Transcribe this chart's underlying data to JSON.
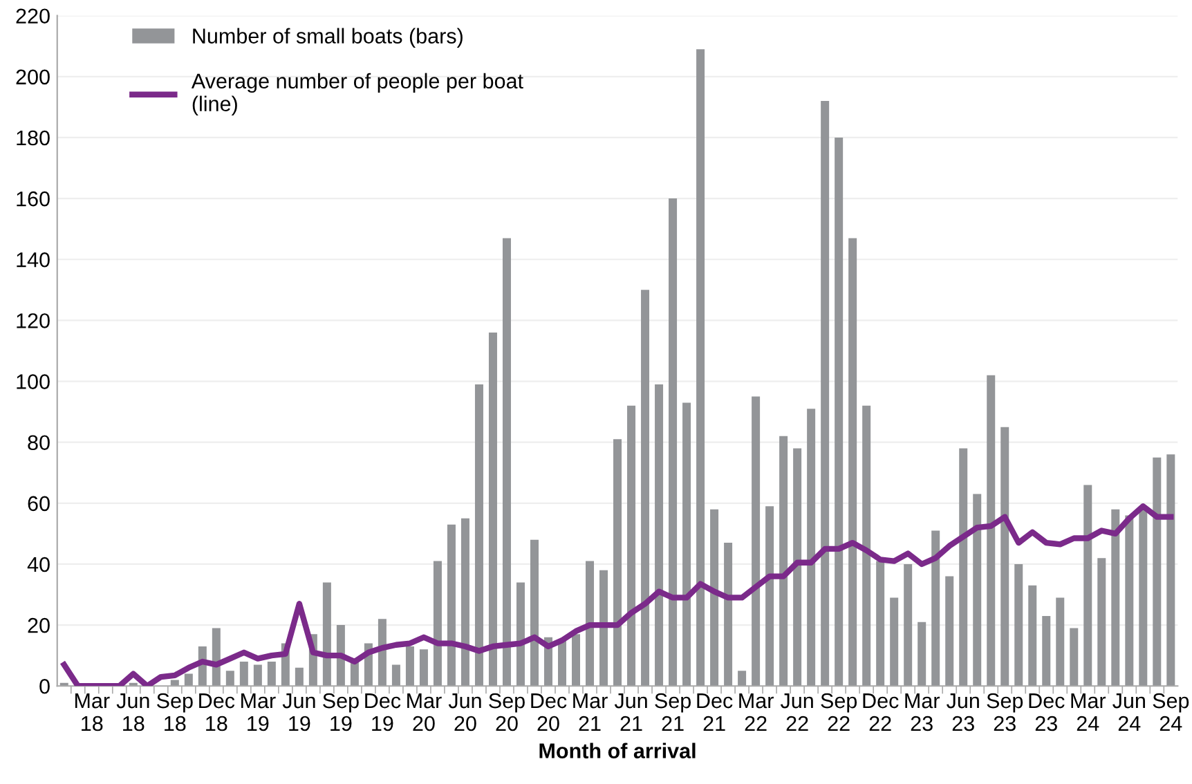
{
  "chart_data": {
    "type": "bar",
    "xlabel": "Month of arrival",
    "categories": [
      null,
      null,
      "Mar\n18",
      null,
      null,
      "Jun\n18",
      null,
      null,
      "Sep\n18",
      null,
      null,
      "Dec\n18",
      null,
      null,
      "Mar\n19",
      null,
      null,
      "Jun\n19",
      null,
      null,
      "Sep\n19",
      null,
      null,
      "Dec\n19",
      null,
      null,
      "Mar\n20",
      null,
      null,
      "Jun\n20",
      null,
      null,
      "Sep\n20",
      null,
      null,
      "Dec\n20",
      null,
      null,
      "Mar\n21",
      null,
      null,
      "Jun\n21",
      null,
      null,
      "Sep\n21",
      null,
      null,
      "Dec\n21",
      null,
      null,
      "Mar\n22",
      null,
      null,
      "Jun\n22",
      null,
      null,
      "Sep\n22",
      null,
      null,
      "Dec\n22",
      null,
      null,
      "Mar\n23",
      null,
      null,
      "Jun\n23",
      null,
      null,
      "Sep\n23",
      null,
      null,
      "Dec\n23",
      null,
      null,
      "Mar\n24",
      null,
      null,
      "Jun\n24",
      null,
      null,
      "Sep\n24"
    ],
    "series": [
      {
        "name": "Number of small boats (bars)",
        "color": "#939598",
        "values": [
          1,
          0,
          0,
          0,
          0,
          1,
          0,
          null,
          2,
          4,
          13,
          19,
          5,
          8,
          7,
          8,
          14,
          6,
          17,
          34,
          20,
          8,
          14,
          22,
          7,
          13,
          12,
          41,
          53,
          55,
          99,
          116,
          147,
          34,
          48,
          16,
          15,
          17,
          41,
          38,
          81,
          92,
          130,
          99,
          160,
          93,
          209,
          58,
          47,
          5,
          95,
          59,
          82,
          78,
          91,
          192,
          180,
          147,
          92,
          41,
          29,
          40,
          21,
          51,
          36,
          78,
          63,
          102,
          85,
          40,
          33,
          23,
          29,
          19,
          66,
          42,
          58,
          56,
          58,
          75,
          76
        ]
      },
      {
        "name": "Average number of people per boat\n(line)",
        "type": "line",
        "color": "#7b2a8a",
        "values": [
          7,
          0,
          0,
          0,
          0,
          4,
          0,
          3,
          3.5,
          6,
          8,
          7,
          9,
          11,
          9,
          10,
          10.5,
          27,
          11,
          10,
          10,
          8,
          11,
          12.5,
          13.5,
          14,
          16,
          14,
          14,
          13,
          11.5,
          13,
          13.5,
          14,
          16,
          13,
          15,
          18,
          20,
          20,
          20,
          24,
          27,
          31,
          29,
          29,
          33.5,
          31,
          29,
          29,
          32.5,
          36,
          36,
          40.5,
          40.5,
          45,
          45,
          47,
          44.5,
          41.5,
          41,
          43.5,
          40,
          42,
          46,
          49,
          52,
          52.5,
          55.5,
          47,
          50.5,
          47,
          46.5,
          48.5,
          48.5,
          51,
          50,
          55,
          59,
          55.5,
          55.5
        ]
      }
    ],
    "ylim": [
      0,
      220
    ],
    "yticks": [
      0,
      20,
      40,
      60,
      80,
      100,
      120,
      140,
      160,
      180,
      200,
      220
    ],
    "grid": "y",
    "legend": "top left",
    "marker": "none",
    "line_style": "solid"
  }
}
